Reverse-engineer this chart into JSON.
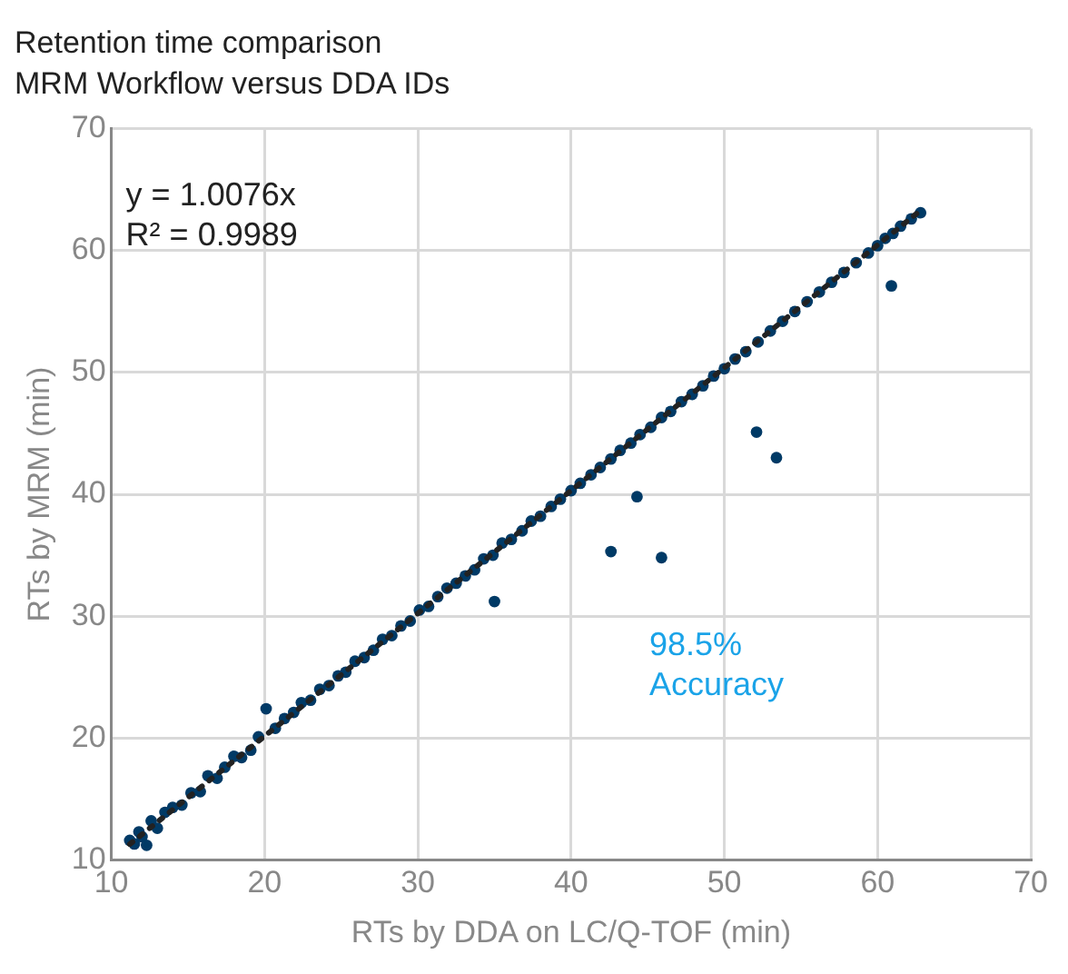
{
  "chart_data": {
    "type": "scatter",
    "title": "Retention time comparison",
    "subtitle": "MRM Workflow versus DDA IDs",
    "xlabel": "RTs by DDA on LC/Q-TOF (min)",
    "ylabel": "RTs by MRM (min)",
    "xlim": [
      10,
      70
    ],
    "xticks": [
      10,
      20,
      30,
      40,
      50,
      60,
      70
    ],
    "ylim": [
      10,
      70
    ],
    "yticks": [
      10,
      20,
      30,
      40,
      50,
      60,
      70
    ],
    "grid": true,
    "legend": false,
    "marker": "circle",
    "annotations": [
      "y = 1.0076x",
      "R² = 0.9989",
      "98.5%",
      "Accuracy"
    ],
    "series": [
      {
        "color": "#003a66",
        "x": [
          11.2,
          11.5,
          11.8,
          12.0,
          12.3,
          12.6,
          13.0,
          13.5,
          14.0,
          14.6,
          15.2,
          15.8,
          16.3,
          16.9,
          17.4,
          18.0,
          18.5,
          19.1,
          19.6,
          20.1,
          20.7,
          21.3,
          21.9,
          22.4,
          23.0,
          23.6,
          24.2,
          24.8,
          25.3,
          25.9,
          26.5,
          27.1,
          27.7,
          28.3,
          28.9,
          29.5,
          30.1,
          30.7,
          31.3,
          31.9,
          32.5,
          33.1,
          33.7,
          34.3,
          34.9,
          35.5,
          36.1,
          36.8,
          37.4,
          38.0,
          38.7,
          39.3,
          40.0,
          40.6,
          41.3,
          41.9,
          42.6,
          43.2,
          43.9,
          44.5,
          45.2,
          45.9,
          46.5,
          47.2,
          47.9,
          48.6,
          49.3,
          50.0,
          50.7,
          51.4,
          52.2,
          53.0,
          53.8,
          54.6,
          55.4,
          56.2,
          57.0,
          57.8,
          58.6,
          59.4,
          60.0,
          60.5,
          61.0,
          61.5,
          62.2,
          62.8,
          35.0,
          42.6,
          45.9,
          44.3,
          52.1,
          53.4,
          60.9
        ],
        "values": [
          11.6,
          11.3,
          12.3,
          11.9,
          11.2,
          13.2,
          12.6,
          13.9,
          14.3,
          14.5,
          15.5,
          15.6,
          16.9,
          16.7,
          17.6,
          18.5,
          18.4,
          19.0,
          20.1,
          22.4,
          20.8,
          21.6,
          22.1,
          22.9,
          23.1,
          24.0,
          24.3,
          25.1,
          25.4,
          26.3,
          26.6,
          27.2,
          28.1,
          28.4,
          29.2,
          29.6,
          30.5,
          30.8,
          31.6,
          32.3,
          32.7,
          33.3,
          33.8,
          34.7,
          35.0,
          36.0,
          36.3,
          37.0,
          37.8,
          38.2,
          39.0,
          39.6,
          40.3,
          40.9,
          41.6,
          42.2,
          42.9,
          43.6,
          44.2,
          44.9,
          45.5,
          46.3,
          46.8,
          47.6,
          48.2,
          48.9,
          49.7,
          50.3,
          51.1,
          51.7,
          52.5,
          53.4,
          54.2,
          55.0,
          55.8,
          56.6,
          57.4,
          58.2,
          59.0,
          59.8,
          60.4,
          61.0,
          61.4,
          62.0,
          62.6,
          63.1,
          31.2,
          35.3,
          34.8,
          39.8,
          45.1,
          43.0,
          57.1
        ]
      },
      {
        "type": "line",
        "color": "#222222",
        "line_style": "dotted",
        "marker": "none",
        "x": [
          11.2,
          62.8
        ],
        "values": [
          11.29,
          63.28
        ]
      }
    ]
  }
}
